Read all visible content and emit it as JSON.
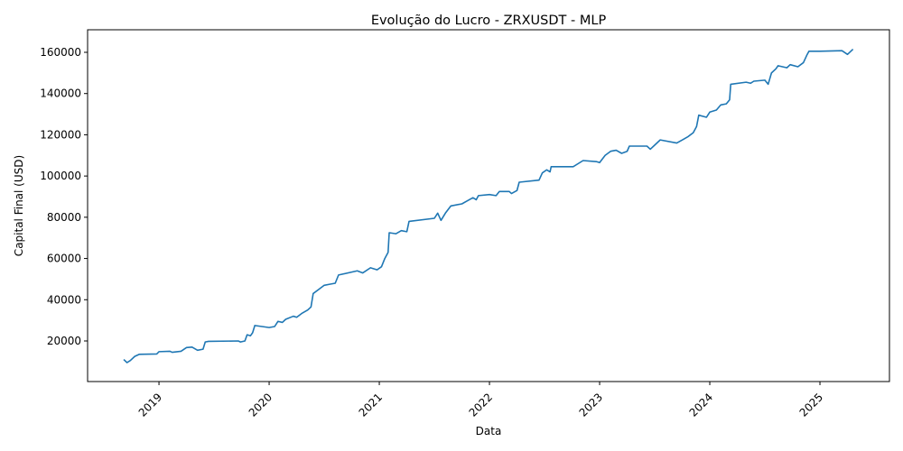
{
  "chart_data": {
    "type": "line",
    "title": "Evolução do Lucro - ZRXUSDT - MLP",
    "xlabel": "Data",
    "ylabel": "Capital Final (USD)",
    "x": [
      2018.68,
      2018.71,
      2018.74,
      2018.78,
      2018.82,
      2018.98,
      2019.0,
      2019.1,
      2019.12,
      2019.2,
      2019.25,
      2019.3,
      2019.35,
      2019.4,
      2019.42,
      2019.45,
      2019.72,
      2019.74,
      2019.78,
      2019.8,
      2019.83,
      2019.85,
      2019.87,
      2020.0,
      2020.05,
      2020.08,
      2020.12,
      2020.15,
      2020.22,
      2020.25,
      2020.3,
      2020.35,
      2020.38,
      2020.4,
      2020.45,
      2020.5,
      2020.55,
      2020.6,
      2020.63,
      2020.8,
      2020.85,
      2020.92,
      2020.98,
      2021.02,
      2021.05,
      2021.08,
      2021.09,
      2021.15,
      2021.2,
      2021.25,
      2021.27,
      2021.5,
      2021.53,
      2021.56,
      2021.6,
      2021.65,
      2021.75,
      2021.8,
      2021.85,
      2021.88,
      2021.9,
      2022.0,
      2022.06,
      2022.09,
      2022.18,
      2022.2,
      2022.25,
      2022.27,
      2022.45,
      2022.48,
      2022.52,
      2022.55,
      2022.56,
      2022.76,
      2022.85,
      2022.97,
      2023.0,
      2023.05,
      2023.1,
      2023.15,
      2023.2,
      2023.25,
      2023.27,
      2023.43,
      2023.46,
      2023.5,
      2023.55,
      2023.7,
      2023.75,
      2023.8,
      2023.85,
      2023.88,
      2023.9,
      2023.97,
      2024.0,
      2024.06,
      2024.1,
      2024.15,
      2024.18,
      2024.19,
      2024.33,
      2024.37,
      2024.4,
      2024.5,
      2024.53,
      2024.56,
      2024.6,
      2024.62,
      2024.7,
      2024.73,
      2024.8,
      2024.85,
      2024.88,
      2024.9,
      2025.0,
      2025.2,
      2025.25,
      2025.3
    ],
    "series": [
      {
        "name": "Capital Final",
        "color": "#1f77b4",
        "values": [
          11000,
          9500,
          10500,
          12500,
          13500,
          13700,
          14800,
          15000,
          14500,
          15000,
          16800,
          17000,
          15500,
          16000,
          19500,
          19800,
          20000,
          19500,
          20000,
          23000,
          22500,
          24000,
          27500,
          26500,
          27000,
          29500,
          29000,
          30500,
          32000,
          31500,
          33500,
          35000,
          36500,
          43000,
          45000,
          47000,
          47500,
          48000,
          52000,
          54000,
          53000,
          55500,
          54500,
          56000,
          60000,
          63000,
          72500,
          72000,
          73500,
          73000,
          78000,
          79500,
          82000,
          78500,
          82000,
          85500,
          86500,
          88000,
          89500,
          88500,
          90500,
          91000,
          90500,
          92500,
          92500,
          91500,
          93000,
          97000,
          98000,
          101500,
          103000,
          102000,
          104500,
          104500,
          107500,
          107000,
          106500,
          110000,
          112000,
          112500,
          111000,
          112000,
          114500,
          114500,
          113000,
          115000,
          117500,
          116000,
          117500,
          119000,
          121000,
          124000,
          129500,
          128500,
          131000,
          132000,
          134500,
          135000,
          137000,
          144500,
          145500,
          145000,
          146000,
          146500,
          144500,
          150000,
          152000,
          153500,
          152500,
          154000,
          153000,
          155000,
          158500,
          160500,
          160500,
          160800,
          159000,
          161500
        ]
      }
    ],
    "xlim": [
      2018.352,
      2025.631
    ],
    "xticks": [
      2019,
      2020,
      2021,
      2022,
      2023,
      2024,
      2025
    ],
    "ylim": [
      312,
      170937
    ],
    "yticks": [
      20000,
      40000,
      60000,
      80000,
      100000,
      120000,
      140000,
      160000
    ]
  }
}
